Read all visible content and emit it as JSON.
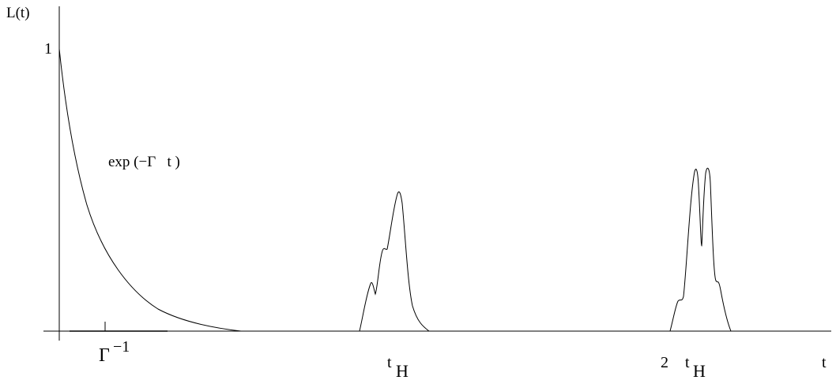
{
  "axes": {
    "y_label": "L(t)",
    "x_label": "t",
    "y_tick_label": "1"
  },
  "annotations": {
    "decay": "exp (−Γ   t )",
    "gamma_base": "Γ",
    "gamma_exp": "−1",
    "tH_t": "t",
    "tH_sub": "H",
    "two_tH_coef": "2",
    "two_tH_t": "t",
    "two_tH_sub": "H"
  }
}
